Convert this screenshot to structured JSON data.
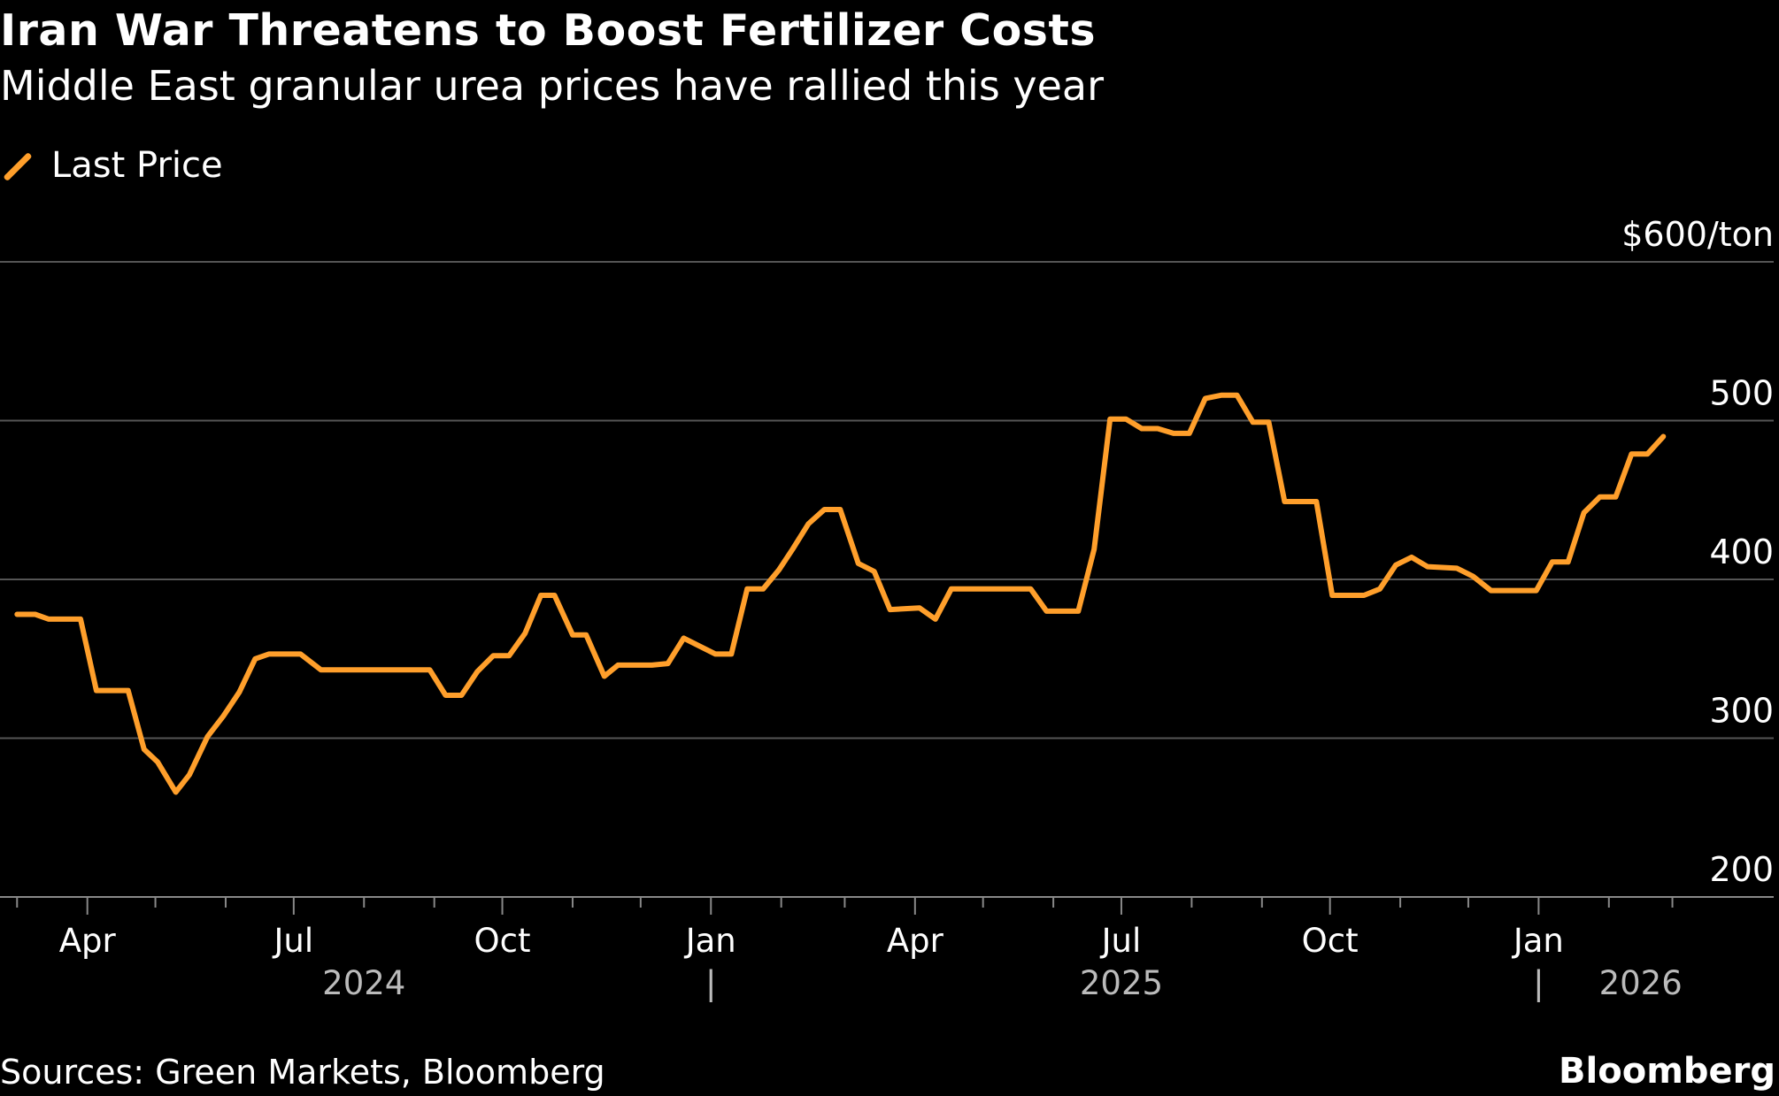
{
  "header": {
    "title": "Iran War Threatens to Boost Fertilizer Costs",
    "subtitle": "Middle East granular urea prices have rallied this year"
  },
  "footer": {
    "source": "Sources: Green Markets, Bloomberg",
    "logo": "Bloomberg"
  },
  "colors": {
    "line": "#ff9f2b",
    "background": "#000000",
    "grid": "#555555",
    "text": "#ffffff",
    "year_text": "#bbbbbb"
  },
  "chart_data": {
    "type": "line",
    "title": "Iran War Threatens to Boost Fertilizer Costs",
    "subtitle": "Middle East granular urea prices have rallied this year",
    "legend": {
      "position": "top-left",
      "entries": [
        "Last Price"
      ]
    },
    "y_unit_label": "$600/ton",
    "ylim": [
      200,
      600
    ],
    "y_ticks": [
      200,
      300,
      400,
      500,
      600
    ],
    "y_tick_labels": [
      "200",
      "300",
      "400",
      "500",
      "$600/ton"
    ],
    "y_axis_side": "right",
    "grid": true,
    "x_ticks": [
      {
        "date": "2024-04-01",
        "label": "Apr"
      },
      {
        "date": "2024-07-01",
        "label": "Jul"
      },
      {
        "date": "2024-10-01",
        "label": "Oct"
      },
      {
        "date": "2025-01-01",
        "label": "Jan"
      },
      {
        "date": "2025-04-01",
        "label": "Apr"
      },
      {
        "date": "2025-07-01",
        "label": "Jul"
      },
      {
        "date": "2025-10-01",
        "label": "Oct"
      },
      {
        "date": "2026-01-01",
        "label": "Jan"
      }
    ],
    "year_labels": [
      {
        "label": "2024",
        "date": "2024-08-01"
      },
      {
        "label": "2025",
        "date": "2025-07-01"
      },
      {
        "label": "2026",
        "date": "2026-02-15"
      }
    ],
    "year_separators": [
      "2025-01-01",
      "2026-01-01"
    ],
    "series": [
      {
        "name": "Last Price",
        "x": [
          "2024-03-01",
          "2024-03-09",
          "2024-03-15",
          "2024-03-29",
          "2024-04-05",
          "2024-04-19",
          "2024-04-26",
          "2024-05-02",
          "2024-05-10",
          "2024-05-16",
          "2024-05-24",
          "2024-05-31",
          "2024-06-07",
          "2024-06-14",
          "2024-06-20",
          "2024-07-04",
          "2024-07-13",
          "2024-08-30",
          "2024-09-06",
          "2024-09-13",
          "2024-09-20",
          "2024-09-27",
          "2024-10-04",
          "2024-10-11",
          "2024-10-18",
          "2024-10-24",
          "2024-11-01",
          "2024-11-07",
          "2024-11-15",
          "2024-11-21",
          "2024-12-06",
          "2024-12-13",
          "2024-12-20",
          "2024-12-27",
          "2025-01-03",
          "2025-01-10",
          "2025-01-17",
          "2025-01-24",
          "2025-01-31",
          "2025-02-06",
          "2025-02-13",
          "2025-02-20",
          "2025-02-27",
          "2025-03-07",
          "2025-03-14",
          "2025-03-21",
          "2025-04-03",
          "2025-04-10",
          "2025-04-17",
          "2025-05-22",
          "2025-05-29",
          "2025-06-12",
          "2025-06-19",
          "2025-06-26",
          "2025-07-03",
          "2025-07-10",
          "2025-07-17",
          "2025-07-24",
          "2025-07-31",
          "2025-08-07",
          "2025-08-14",
          "2025-08-21",
          "2025-08-28",
          "2025-09-04",
          "2025-09-11",
          "2025-09-25",
          "2025-10-02",
          "2025-10-16",
          "2025-10-23",
          "2025-10-30",
          "2025-11-06",
          "2025-11-13",
          "2025-11-26",
          "2025-12-03",
          "2025-12-11",
          "2025-12-31",
          "2026-01-07",
          "2026-01-14",
          "2026-01-21",
          "2026-01-28",
          "2026-02-04",
          "2026-02-11",
          "2026-02-18",
          "2026-02-25"
        ],
        "values": [
          378,
          378,
          375,
          375,
          330,
          330,
          293,
          285,
          266,
          277,
          301,
          314,
          329,
          350,
          353,
          353,
          343,
          343,
          327,
          327,
          342,
          352,
          352,
          366,
          390,
          390,
          365,
          365,
          339,
          346,
          346,
          347,
          363,
          358,
          353,
          353,
          394,
          394,
          406,
          419,
          435,
          444,
          444,
          410,
          405,
          381,
          382,
          375,
          394,
          394,
          380,
          380,
          419,
          501,
          501,
          495,
          495,
          492,
          492,
          514,
          516,
          516,
          499,
          499,
          449,
          449,
          390,
          390,
          394,
          409,
          414,
          408,
          407,
          402,
          393,
          393,
          411,
          411,
          442,
          452,
          452,
          479,
          479,
          490
        ]
      }
    ]
  }
}
